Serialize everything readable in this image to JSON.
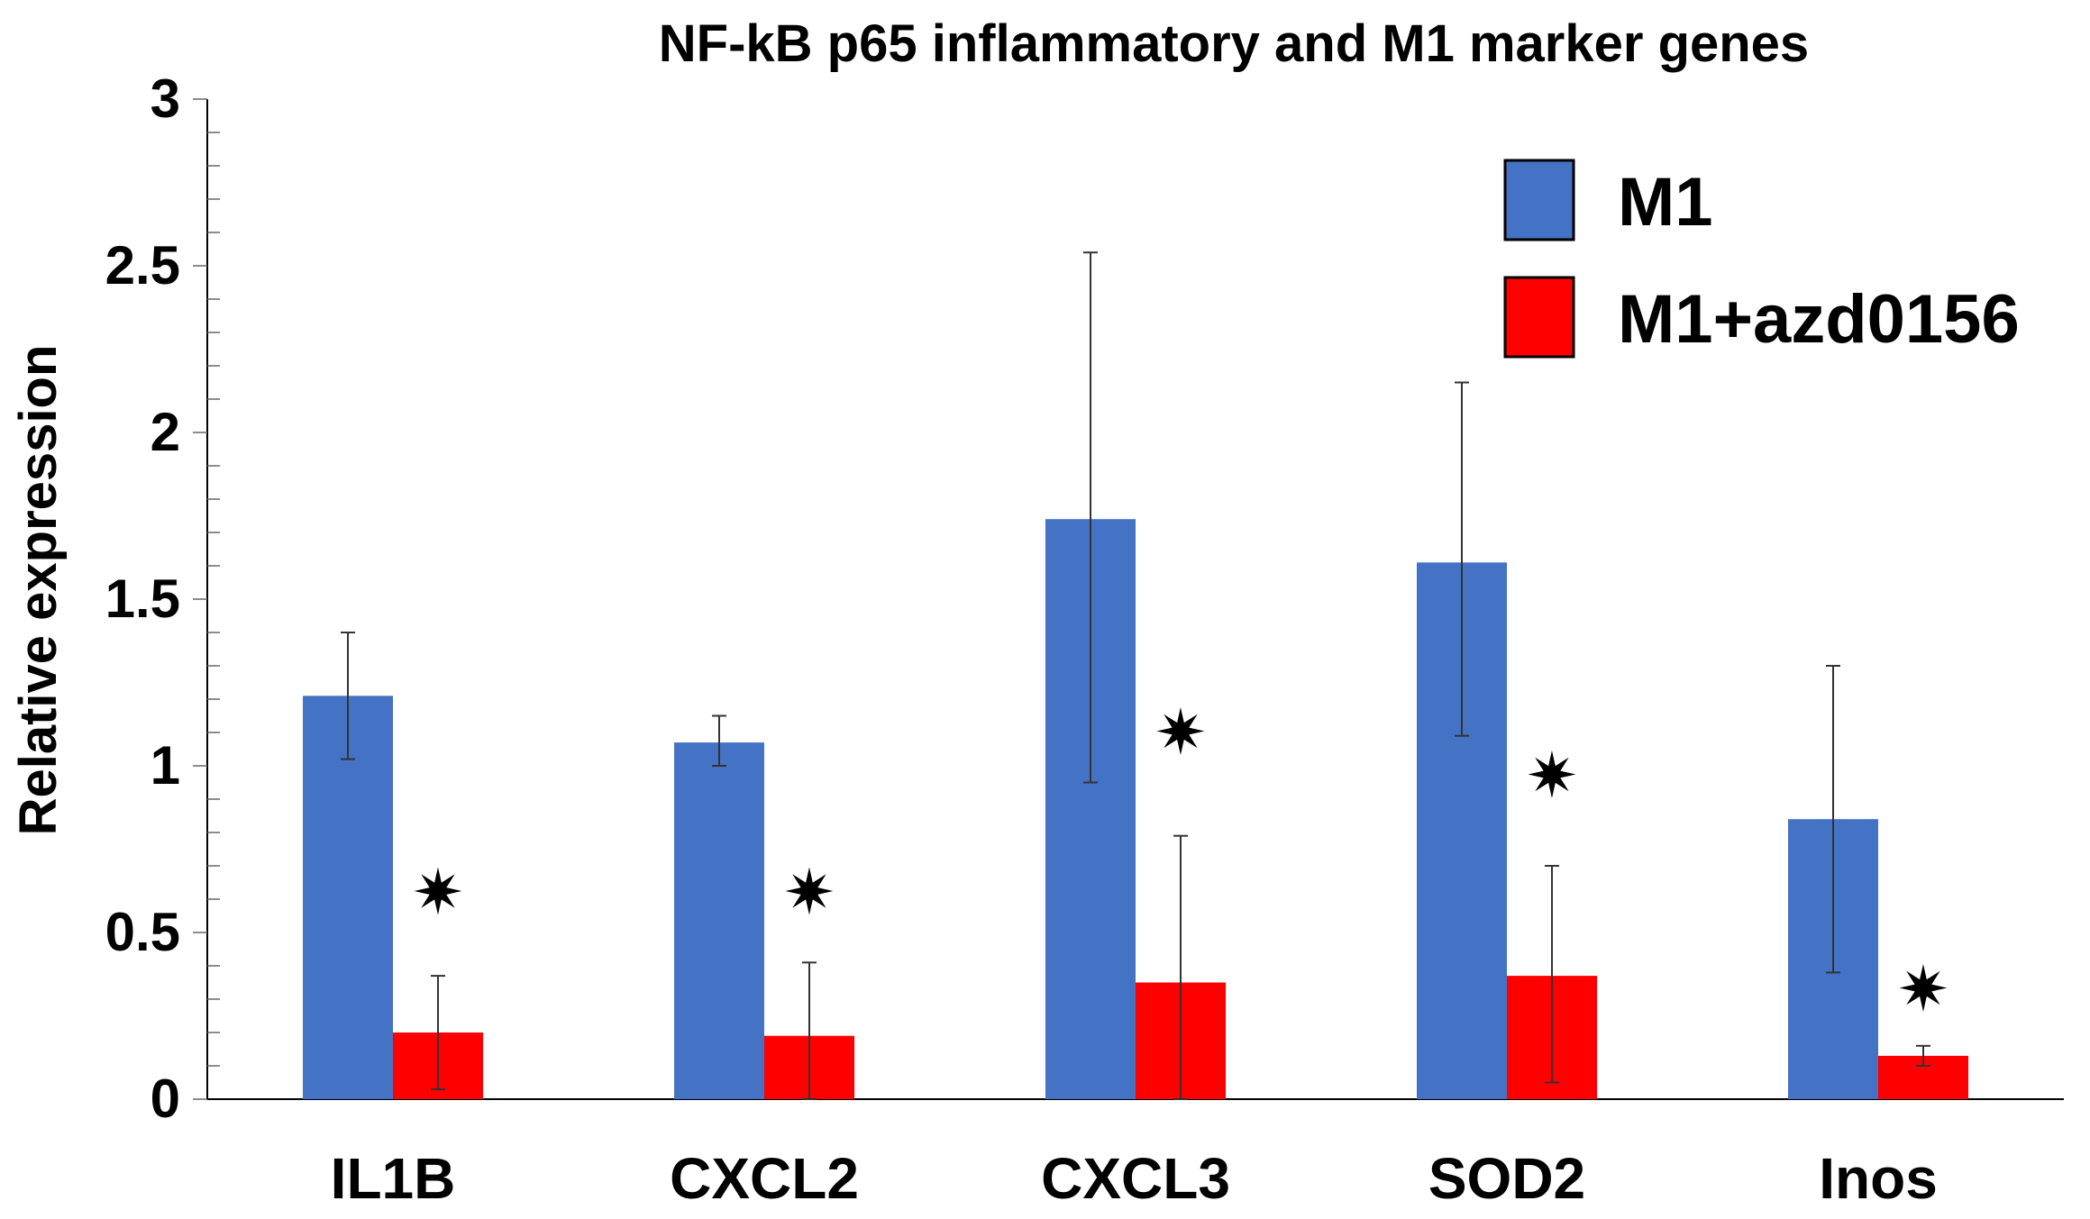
{
  "chart_data": {
    "type": "bar",
    "title": "NF-kB p65 inflammatory and M1 marker genes",
    "ylabel": "Relative expression",
    "xlabel": "",
    "ylim": [
      0,
      3
    ],
    "yticks": [
      0,
      0.5,
      1,
      1.5,
      2,
      2.5,
      3
    ],
    "ytick_labels": [
      "0",
      "0.5",
      "1",
      "1.5",
      "2",
      "2.5",
      "3"
    ],
    "categories": [
      "IL1B",
      "CXCL2",
      "CXCL3",
      "SOD2",
      "Inos"
    ],
    "series": [
      {
        "name": "M1",
        "color": "#4472c4",
        "values": [
          1.21,
          1.07,
          1.74,
          1.61,
          0.84
        ],
        "err_low": [
          1.02,
          1.0,
          0.95,
          1.09,
          0.38
        ],
        "err_high": [
          1.4,
          1.15,
          2.54,
          2.15,
          1.3
        ]
      },
      {
        "name": "M1+azd0156",
        "color": "#ff0000",
        "values": [
          0.2,
          0.19,
          0.35,
          0.37,
          0.13
        ],
        "err_low": [
          0.03,
          0.0,
          0.0,
          0.05,
          0.1
        ],
        "err_high": [
          0.37,
          0.41,
          0.79,
          0.7,
          0.16
        ]
      }
    ],
    "significance": {
      "symbol": "✷",
      "series": "M1+azd0156",
      "positions": [
        0.62,
        0.62,
        1.1,
        0.97,
        0.33
      ]
    },
    "legend": {
      "position": "top-right"
    },
    "grid": false
  }
}
